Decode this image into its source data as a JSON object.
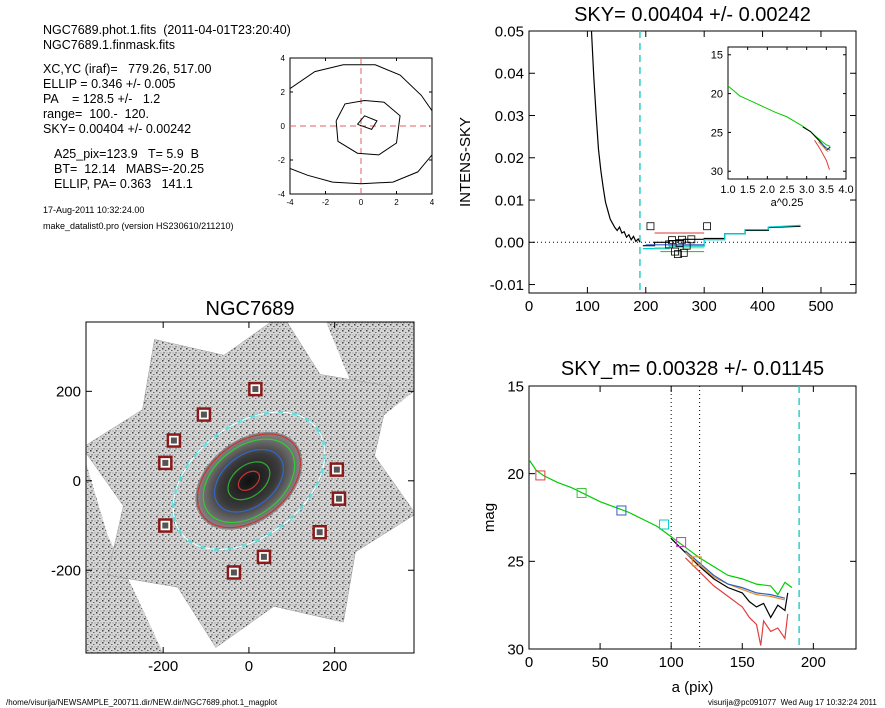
{
  "info": {
    "lines_a": [
      "NGC7689.phot.1.fits  (2011-04-01T23:20:40)",
      "NGC7689.1.finmask.fits"
    ],
    "lines_b": [
      "XC,YC (iraf)=   779.26, 517.00",
      "ELLIP = 0.346 +/- 0.005",
      "PA    = 128.5 +/-   1.2",
      "range=  100.-  120.",
      "SKY= 0.00404 +/- 0.00242"
    ],
    "lines_c": [
      "A25_pix=123.9   T= 5.9  B",
      "BT=  12.14   MABS=-20.25",
      "ELLIP, PA= 0.363   141.1"
    ],
    "date": "17-Aug-2011 10:32:24.00",
    "program": "make_datalist0.pro (version HS230610/211210)"
  },
  "footer": {
    "left": "/home/visurija/NEWSAMPLE_200711.dir/NEW.dir/NGC7689.phot.1_magplot",
    "right": "visurija@pc091077  Wed Aug 17 10:32:24 2011"
  },
  "chart_data": [
    {
      "id": "center_contour",
      "type": "contour",
      "title": "",
      "xlim": [
        -4,
        4
      ],
      "ylim": [
        -4,
        4
      ],
      "xticks": [
        -4,
        -2,
        0,
        2,
        4
      ],
      "yticks": [
        -4,
        -2,
        0,
        2,
        4
      ],
      "xtick_labels": [
        "-4",
        "-2",
        "0",
        "2",
        "4"
      ],
      "ytick_labels": [
        "-4",
        "-2",
        "0",
        "2",
        "4"
      ],
      "crosshair": [
        0,
        0
      ],
      "contours": [
        [
          [
            -4,
            2.2
          ],
          [
            -2.6,
            3.2
          ],
          [
            -1,
            3.6
          ],
          [
            0.8,
            3.6
          ],
          [
            2.2,
            3.0
          ],
          [
            3.4,
            1.8
          ],
          [
            4,
            0.9
          ]
        ],
        [
          [
            4,
            -1.7
          ],
          [
            3.2,
            -2.7
          ],
          [
            1.8,
            -3.3
          ],
          [
            0,
            -3.4
          ],
          [
            -1.6,
            -3.3
          ],
          [
            -3,
            -2.9
          ],
          [
            -4,
            -2.5
          ]
        ],
        [
          [
            -1.4,
            0.3
          ],
          [
            -0.9,
            1.3
          ],
          [
            0.2,
            1.5
          ],
          [
            1.3,
            1.4
          ],
          [
            2.2,
            0.6
          ],
          [
            2.0,
            -1.0
          ],
          [
            1.0,
            -1.7
          ],
          [
            -0.2,
            -1.6
          ],
          [
            -1.3,
            -0.9
          ],
          [
            -1.4,
            0.3
          ]
        ],
        [
          [
            -0.2,
            0.1
          ],
          [
            0.2,
            0.6
          ],
          [
            0.9,
            0.3
          ],
          [
            0.6,
            -0.2
          ],
          [
            -0.2,
            0.1
          ]
        ]
      ]
    },
    {
      "id": "sky_profile",
      "type": "line",
      "title": "SKY= 0.00404 +/- 0.00242",
      "xlabel": "",
      "ylabel": "INTENS-SKY",
      "xlim": [
        0,
        560
      ],
      "ylim": [
        -0.012,
        0.05
      ],
      "xticks": [
        0,
        100,
        200,
        300,
        400,
        500
      ],
      "xtick_labels": [
        "0",
        "100",
        "200",
        "300",
        "400",
        "500"
      ],
      "yticks": [
        -0.01,
        0.0,
        0.01,
        0.02,
        0.03,
        0.04,
        0.05
      ],
      "ytick_labels": [
        "-0.01",
        "0.00",
        "0.01",
        "0.02",
        "0.03",
        "0.04",
        "0.05"
      ],
      "vline_cyan": 190,
      "hline_dotted": 0,
      "series": [
        {
          "color": "#000000",
          "x": [
            107,
            111,
            115,
            119,
            123,
            127,
            131,
            135,
            139,
            143,
            147,
            151,
            155,
            159,
            163,
            167,
            171,
            175,
            179,
            183,
            187,
            190
          ],
          "y": [
            0.05,
            0.039,
            0.03,
            0.022,
            0.017,
            0.013,
            0.0095,
            0.0075,
            0.0055,
            0.0045,
            0.0035,
            0.0028,
            0.0036,
            0.0022,
            0.0025,
            0.0012,
            0.0018,
            0.0006,
            0.0014,
            0.0002,
            0.0008,
            0.0
          ]
        },
        {
          "color": "#000000",
          "x": [
            195,
            215,
            215,
            240,
            240,
            265,
            265,
            300,
            300,
            335,
            335,
            370,
            370,
            410,
            410,
            465
          ],
          "y": [
            -0.0008,
            -0.0008,
            0.0,
            0.0,
            0.0004,
            0.0004,
            0.0007,
            0.0007,
            0.0009,
            0.0009,
            0.002,
            0.002,
            0.0028,
            0.0028,
            0.0035,
            0.0038
          ]
        },
        {
          "color": "#00cccc",
          "x": [
            195,
            240,
            240,
            300,
            300,
            335,
            335,
            370,
            370,
            410,
            410,
            465
          ],
          "y": [
            -0.0015,
            -0.0015,
            -0.0009,
            -0.0009,
            0.0006,
            0.0006,
            0.002,
            0.002,
            0.003,
            0.003,
            0.0036,
            0.004
          ]
        },
        {
          "color": "#3060c0",
          "x": [
            200,
            300
          ],
          "y": [
            -0.0006,
            -0.0006
          ]
        },
        {
          "color": "#e06060",
          "x": [
            215,
            300
          ],
          "y": [
            0.0022,
            0.0022
          ]
        },
        {
          "color": "#40c040",
          "x": [
            225,
            300
          ],
          "y": [
            -0.0022,
            -0.0022
          ]
        },
        {
          "color": "#90e090",
          "x": [
            215,
            300
          ],
          "y": [
            -0.0013,
            -0.0013
          ]
        }
      ],
      "squares": {
        "x": [
          208,
          240,
          245,
          250,
          255,
          258,
          262,
          265,
          270,
          278,
          305
        ],
        "y": [
          0.0038,
          -0.0005,
          0.0005,
          -0.0022,
          -0.0028,
          -0.0002,
          0.0006,
          -0.0025,
          -0.0008,
          0.0007,
          0.0038
        ]
      }
    },
    {
      "id": "inset_profile",
      "type": "line",
      "title": "",
      "xlabel": "a^0.25",
      "ylabel": "",
      "xlim": [
        1.0,
        4.0
      ],
      "ylim": [
        31,
        14
      ],
      "xticks": [
        1.0,
        1.5,
        2.0,
        2.5,
        3.0,
        3.5,
        4.0
      ],
      "xtick_labels": [
        "1.0",
        "1.5",
        "2.0",
        "2.5",
        "3.0",
        "3.5",
        "4.0"
      ],
      "yticks": [
        15,
        20,
        25,
        30
      ],
      "ytick_labels": [
        "15",
        "20",
        "25",
        "30"
      ],
      "series": [
        {
          "color": "#00cc00",
          "x": [
            1.0,
            1.3,
            1.6,
            1.9,
            2.2,
            2.5,
            2.7,
            2.9,
            3.1,
            3.25,
            3.4,
            3.5,
            3.6
          ],
          "y": [
            19.0,
            20.3,
            21.0,
            21.7,
            22.4,
            23.0,
            23.6,
            24.2,
            24.9,
            25.6,
            26.2,
            26.6,
            26.8
          ]
        },
        {
          "color": "#000000",
          "x": [
            2.9,
            3.1,
            3.25,
            3.4,
            3.5,
            3.6
          ],
          "y": [
            24.3,
            24.9,
            25.7,
            26.5,
            27.3,
            26.9
          ]
        },
        {
          "color": "#e04040",
          "x": [
            3.2,
            3.35,
            3.5,
            3.58
          ],
          "y": [
            26.0,
            27.2,
            28.6,
            29.8
          ]
        },
        {
          "color": "#e09030",
          "x": [
            3.3,
            3.45,
            3.55
          ],
          "y": [
            26.2,
            27.0,
            27.5
          ]
        },
        {
          "color": "#3060c0",
          "x": [
            3.35,
            3.5,
            3.6
          ],
          "y": [
            26.3,
            27.0,
            27.3
          ]
        }
      ]
    },
    {
      "id": "galaxy_image",
      "type": "image",
      "title": "NGC7689",
      "xlim": [
        -380,
        385
      ],
      "ylim": [
        -385,
        355
      ],
      "xticks": [
        -200,
        0,
        200
      ],
      "yticks": [
        -200,
        0,
        200
      ],
      "xtick_labels": [
        "-200",
        "0",
        "200"
      ],
      "ytick_labels": [
        "-200",
        "0",
        "200"
      ],
      "markers": [
        [
          15,
          205
        ],
        [
          -105,
          148
        ],
        [
          -175,
          90
        ],
        [
          -195,
          40
        ],
        [
          205,
          25
        ],
        [
          210,
          -40
        ],
        [
          165,
          -115
        ],
        [
          -195,
          -100
        ],
        [
          -35,
          -205
        ],
        [
          35,
          -170
        ]
      ],
      "ellipses": [
        {
          "a": 200,
          "b": 130,
          "color": "#66dddd",
          "dashed": true
        },
        {
          "a": 135,
          "b": 90,
          "color": "#cc3333",
          "dashed": false
        },
        {
          "a": 120,
          "b": 80,
          "color": "#33cc33",
          "dashed": false
        },
        {
          "a": 90,
          "b": 60,
          "color": "#3366cc",
          "dashed": false
        },
        {
          "a": 55,
          "b": 36,
          "color": "#33aa33",
          "dashed": false
        },
        {
          "a": 28,
          "b": 18,
          "color": "#cc3333",
          "dashed": false
        }
      ],
      "ellipse_angle_deg": -38
    },
    {
      "id": "mag_profile",
      "type": "line",
      "title": "SKY_m=  0.00328 +/- 0.01145",
      "xlabel": "a (pix)",
      "ylabel": "mag",
      "xlim": [
        0,
        230
      ],
      "ylim": [
        30,
        15
      ],
      "xticks": [
        0,
        50,
        100,
        150,
        200
      ],
      "xtick_labels": [
        "0",
        "50",
        "100",
        "150",
        "200"
      ],
      "yticks": [
        15,
        20,
        25,
        30
      ],
      "ytick_labels": [
        "15",
        "20",
        "25",
        "30"
      ],
      "vlines_dotted": [
        100,
        120
      ],
      "vline_cyan": 190,
      "series": [
        {
          "color": "#00cc00",
          "x": [
            0,
            5,
            10,
            20,
            30,
            40,
            50,
            60,
            70,
            80,
            90,
            100,
            110,
            120,
            130,
            140,
            150,
            160,
            170,
            175,
            180,
            185
          ],
          "y": [
            19.2,
            19.8,
            20.1,
            20.5,
            20.8,
            21.2,
            21.6,
            21.9,
            22.2,
            22.6,
            23.0,
            23.6,
            24.2,
            24.8,
            25.3,
            25.8,
            26.0,
            26.3,
            26.4,
            26.9,
            26.2,
            26.5
          ]
        },
        {
          "color": "#000000",
          "x": [
            100,
            110,
            120,
            130,
            140,
            150,
            155,
            160,
            165,
            170,
            175,
            180,
            182
          ],
          "y": [
            23.7,
            24.5,
            25.3,
            26.0,
            26.5,
            26.8,
            27.3,
            27.6,
            27.4,
            28.2,
            27.5,
            27.8,
            26.8
          ]
        },
        {
          "color": "#e04040",
          "x": [
            110,
            120,
            130,
            140,
            150,
            155,
            160,
            163,
            165,
            170,
            175,
            180,
            182
          ],
          "y": [
            24.8,
            25.6,
            26.4,
            27.0,
            27.6,
            28.2,
            28.6,
            29.8,
            28.4,
            29.0,
            28.8,
            29.4,
            28.0
          ]
        },
        {
          "color": "#e09030",
          "x": [
            110,
            120,
            130,
            140,
            150,
            160,
            170,
            180
          ],
          "y": [
            24.5,
            25.2,
            25.9,
            26.3,
            26.6,
            26.9,
            27.0,
            27.2
          ]
        },
        {
          "color": "#3060c0",
          "x": [
            110,
            120,
            130,
            140,
            150,
            160,
            170,
            180
          ],
          "y": [
            24.4,
            25.1,
            25.8,
            26.3,
            26.5,
            26.8,
            26.9,
            27.1
          ]
        }
      ],
      "squares": [
        {
          "x": 8,
          "y": 20.1,
          "color": "#e04040"
        },
        {
          "x": 37,
          "y": 21.1,
          "color": "#40c040"
        },
        {
          "x": 65,
          "y": 22.1,
          "color": "#3060c0"
        },
        {
          "x": 95,
          "y": 22.9,
          "color": "#00cccc"
        },
        {
          "x": 107,
          "y": 23.9,
          "color": "#c040c0"
        },
        {
          "x": 118,
          "y": 25.0,
          "color": "#e09030"
        }
      ]
    }
  ]
}
